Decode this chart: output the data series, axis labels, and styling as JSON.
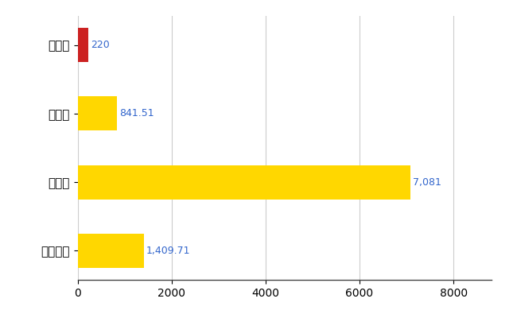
{
  "categories": [
    "全国平均",
    "県最大",
    "県平均",
    "金武町"
  ],
  "values": [
    1409.71,
    7081,
    841.51,
    220
  ],
  "colors": [
    "#FFD700",
    "#FFD700",
    "#FFD700",
    "#CC2222"
  ],
  "labels": [
    "1,409.71",
    "7,081",
    "841.51",
    "220"
  ],
  "xlim": [
    0,
    8800
  ],
  "xticks": [
    0,
    2000,
    4000,
    6000,
    8000
  ],
  "bar_height": 0.5,
  "background_color": "#FFFFFF",
  "grid_color": "#CCCCCC",
  "label_color": "#3366CC",
  "label_fontsize": 9,
  "tick_fontsize": 10,
  "ytick_fontsize": 11
}
